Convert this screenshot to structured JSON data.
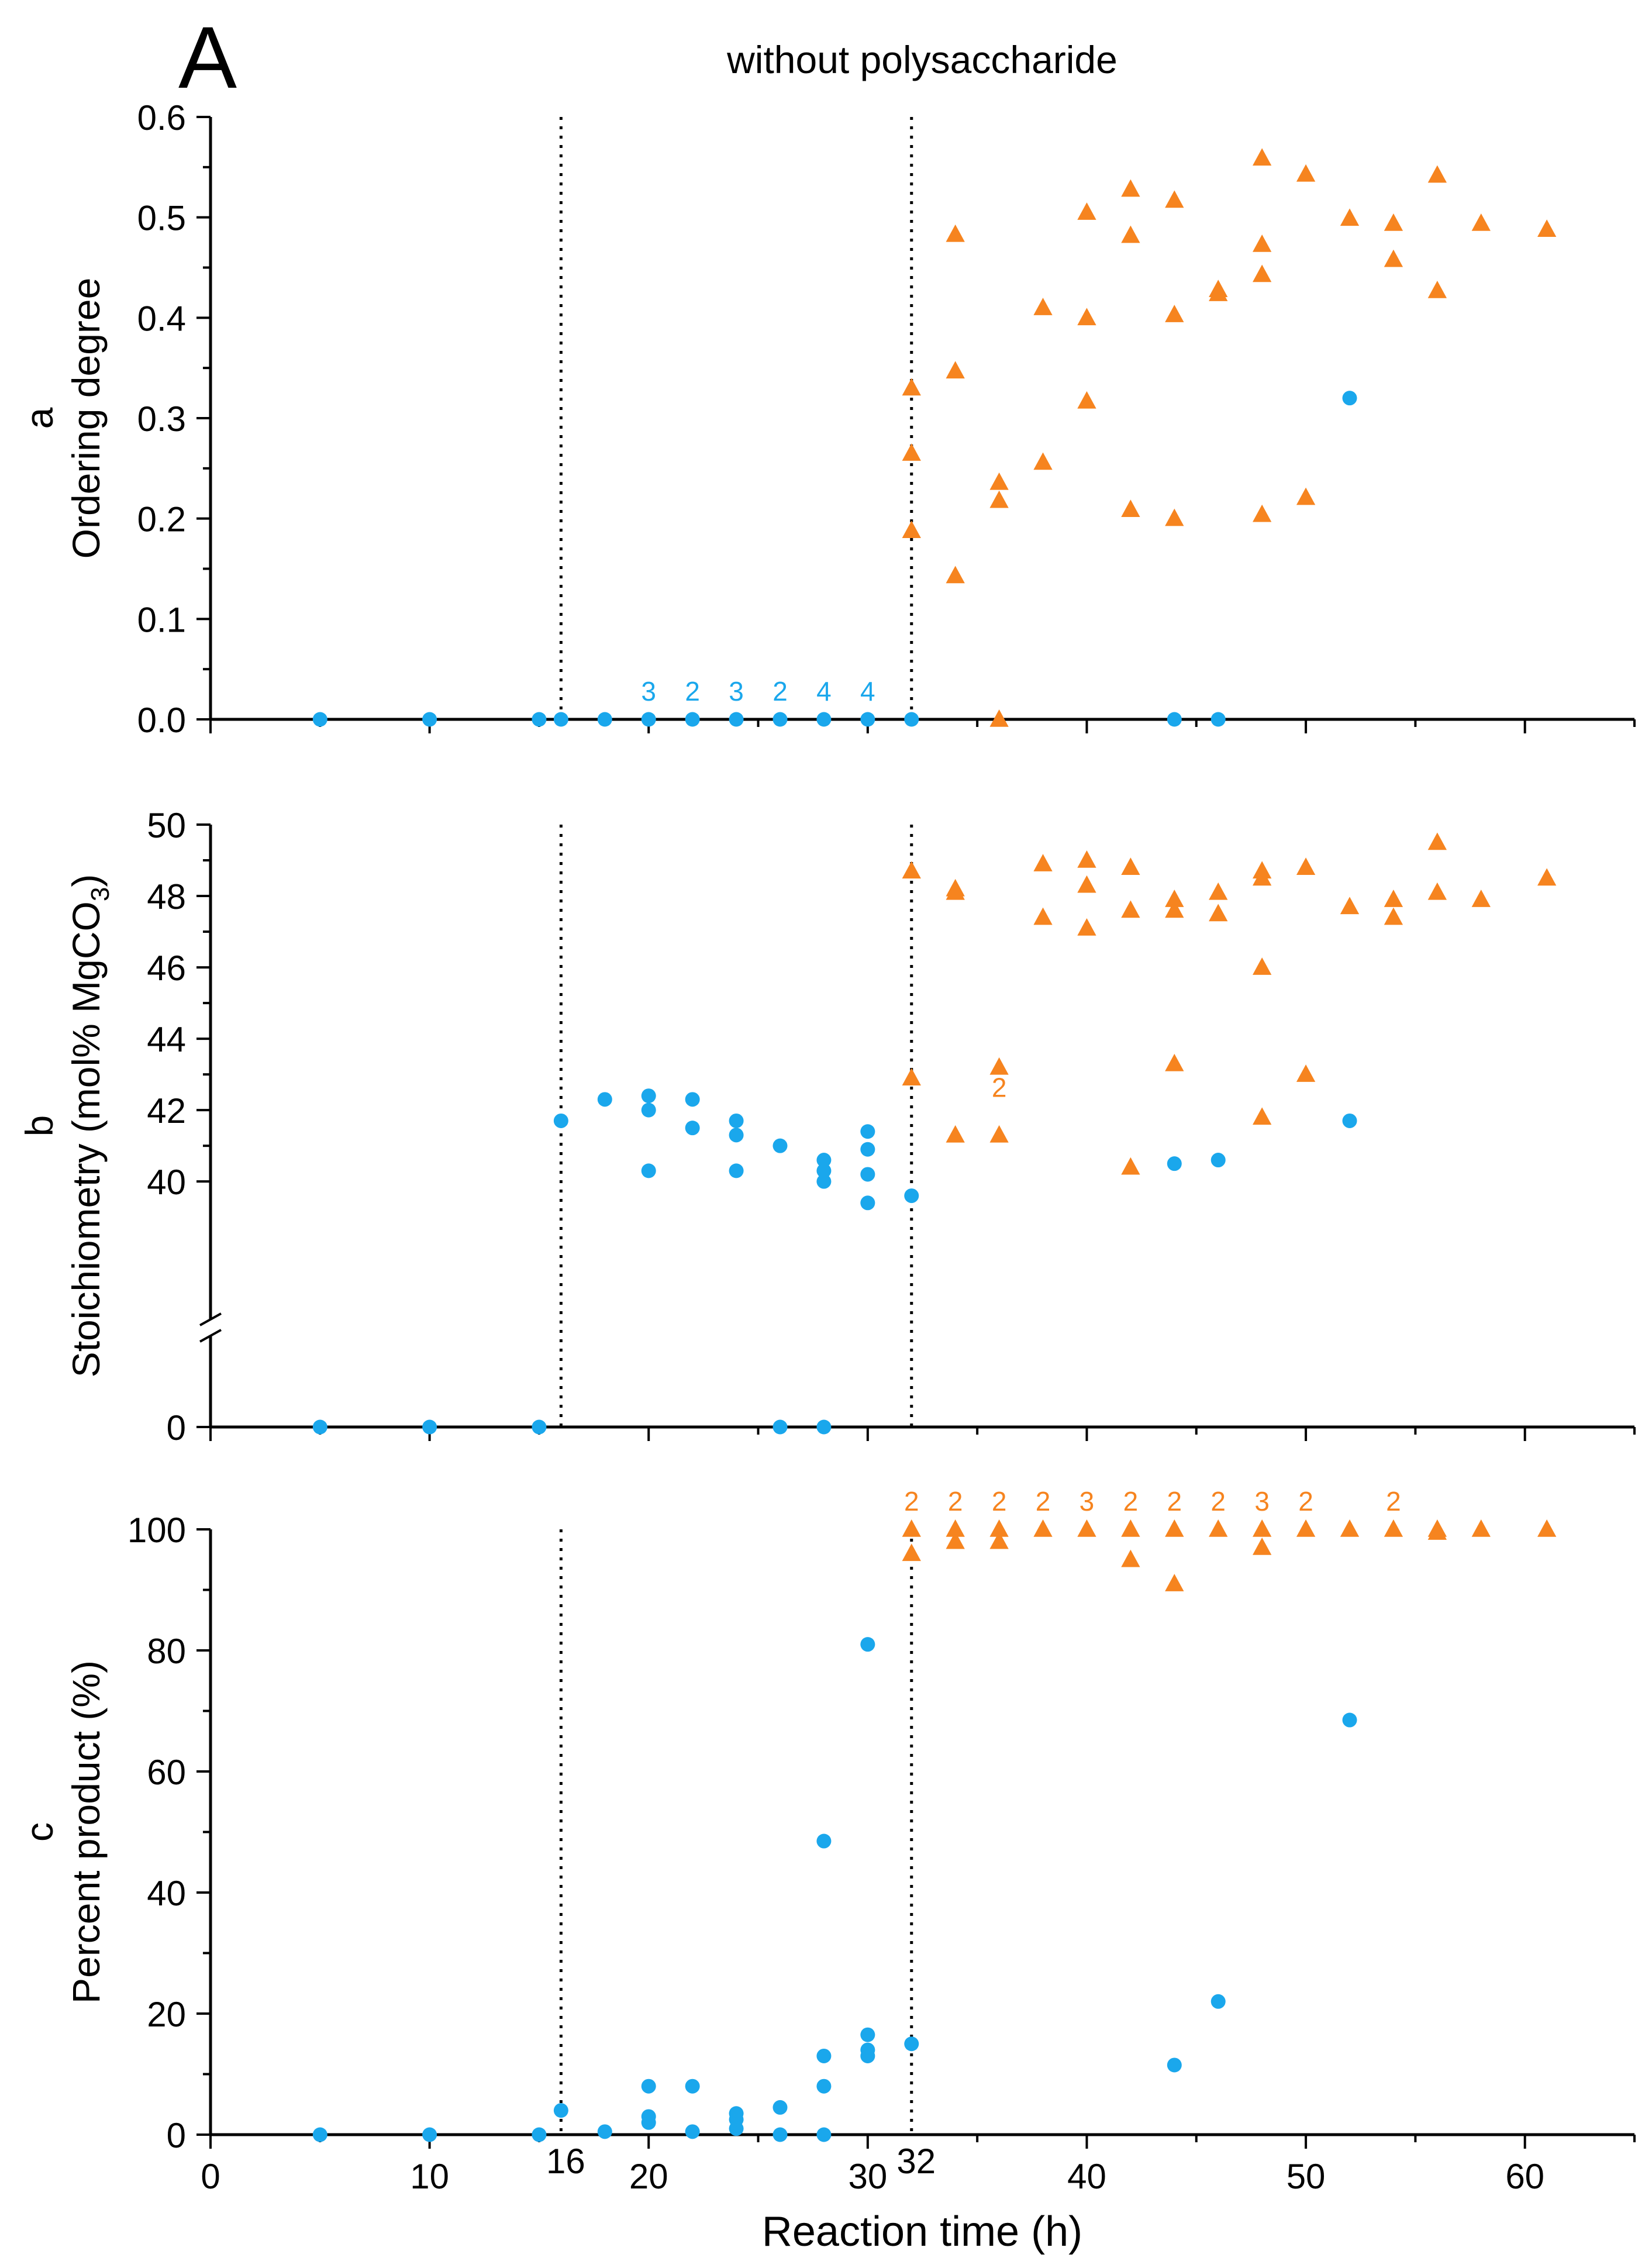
{
  "figure": {
    "panel_letter": "A",
    "title": "without polysaccharide",
    "xlabel": "Reaction time (h)",
    "xlim": [
      0,
      65
    ],
    "xticks": [
      0,
      10,
      20,
      30,
      40,
      50,
      60
    ],
    "vlines": [
      16,
      32
    ],
    "vline_labels": [
      "16",
      "32"
    ],
    "colors": {
      "phase1": "#1aa7ec",
      "phase2": "#f6841f",
      "axis": "#000000"
    }
  },
  "chart_data": [
    {
      "id": "a",
      "type": "scatter",
      "panel_label": "a",
      "ylabel": "Ordering degree",
      "ylim": [
        0,
        0.6
      ],
      "yticks": [
        0.0,
        0.1,
        0.2,
        0.3,
        0.4,
        0.5,
        0.6
      ],
      "ytick_labels": [
        "0.0",
        "0.1",
        "0.2",
        "0.3",
        "0.4",
        "0.5",
        "0.6"
      ],
      "series": [
        {
          "name": "blue circles",
          "marker": "circle",
          "color": "#1aa7ec",
          "points": [
            [
              5,
              0
            ],
            [
              10,
              0
            ],
            [
              15,
              0
            ],
            [
              16,
              0
            ],
            [
              18,
              0
            ],
            [
              20,
              0
            ],
            [
              22,
              0
            ],
            [
              24,
              0
            ],
            [
              26,
              0
            ],
            [
              28,
              0
            ],
            [
              30,
              0
            ],
            [
              32,
              0
            ],
            [
              44,
              0
            ],
            [
              46,
              0
            ],
            [
              52,
              0.32
            ]
          ]
        },
        {
          "name": "orange triangles",
          "marker": "triangle",
          "color": "#f6841f",
          "points": [
            [
              32,
              0.33
            ],
            [
              32,
              0.265
            ],
            [
              32,
              0.188
            ],
            [
              34,
              0.483
            ],
            [
              34,
              0.347
            ],
            [
              34,
              0.143
            ],
            [
              36,
              0.236
            ],
            [
              36,
              0.218
            ],
            [
              36,
              0.0
            ],
            [
              38,
              0.41
            ],
            [
              38,
              0.256
            ],
            [
              40,
              0.505
            ],
            [
              40,
              0.4
            ],
            [
              40,
              0.317
            ],
            [
              42,
              0.528
            ],
            [
              42,
              0.482
            ],
            [
              42,
              0.209
            ],
            [
              44,
              0.517
            ],
            [
              44,
              0.403
            ],
            [
              44,
              0.2
            ],
            [
              46,
              0.428
            ],
            [
              46,
              0.424
            ],
            [
              48,
              0.559
            ],
            [
              48,
              0.473
            ],
            [
              48,
              0.443
            ],
            [
              48,
              0.204
            ],
            [
              50,
              0.543
            ],
            [
              50,
              0.221
            ],
            [
              52,
              0.499
            ],
            [
              54,
              0.494
            ],
            [
              54,
              0.458
            ],
            [
              56,
              0.542
            ],
            [
              56,
              0.427
            ],
            [
              58,
              0.494
            ],
            [
              61,
              0.488
            ]
          ]
        }
      ],
      "annotations": [
        {
          "x": 20,
          "y": 0,
          "text": "3",
          "color": "#1aa7ec"
        },
        {
          "x": 22,
          "y": 0,
          "text": "2",
          "color": "#1aa7ec"
        },
        {
          "x": 24,
          "y": 0,
          "text": "3",
          "color": "#1aa7ec"
        },
        {
          "x": 26,
          "y": 0,
          "text": "2",
          "color": "#1aa7ec"
        },
        {
          "x": 28,
          "y": 0,
          "text": "4",
          "color": "#1aa7ec"
        },
        {
          "x": 30,
          "y": 0,
          "text": "4",
          "color": "#1aa7ec"
        }
      ]
    },
    {
      "id": "b",
      "type": "scatter",
      "panel_label": "b",
      "ylabel_prefix": "Stoichiometry (mol% MgCO",
      "ylabel_sub": "3",
      "ylabel_suffix": ")",
      "ylim": [
        38.2,
        50
      ],
      "axis_break": true,
      "below_break_value": 0,
      "yticks": [
        40,
        42,
        44,
        46,
        48,
        50
      ],
      "ytick_labels": [
        "40",
        "42",
        "44",
        "46",
        "48",
        "50"
      ],
      "extra_tick_label": "0",
      "series": [
        {
          "name": "blue circles",
          "marker": "circle",
          "color": "#1aa7ec",
          "points": [
            [
              16,
              41.7
            ],
            [
              18,
              42.3
            ],
            [
              20,
              42.4
            ],
            [
              20,
              42.0
            ],
            [
              20,
              40.3
            ],
            [
              22,
              42.3
            ],
            [
              22,
              41.5
            ],
            [
              24,
              41.7
            ],
            [
              24,
              41.3
            ],
            [
              24,
              40.3
            ],
            [
              26,
              41.0
            ],
            [
              28,
              40.6
            ],
            [
              28,
              40.3
            ],
            [
              28,
              40.0
            ],
            [
              30,
              41.4
            ],
            [
              30,
              40.9
            ],
            [
              30,
              40.2
            ],
            [
              30,
              39.4
            ],
            [
              32,
              39.6
            ],
            [
              44,
              40.5
            ],
            [
              46,
              40.6
            ],
            [
              52,
              41.7
            ]
          ]
        },
        {
          "name": "orange triangles",
          "marker": "triangle",
          "color": "#f6841f",
          "points": [
            [
              32,
              48.7
            ],
            [
              32,
              42.9
            ],
            [
              34,
              48.2
            ],
            [
              34,
              48.1
            ],
            [
              34,
              41.3
            ],
            [
              36,
              43.2
            ],
            [
              36,
              41.3
            ],
            [
              38,
              48.9
            ],
            [
              38,
              47.4
            ],
            [
              40,
              49.0
            ],
            [
              40,
              48.3
            ],
            [
              40,
              47.1
            ],
            [
              42,
              48.8
            ],
            [
              42,
              47.6
            ],
            [
              42,
              40.4
            ],
            [
              44,
              47.9
            ],
            [
              44,
              47.6
            ],
            [
              44,
              43.3
            ],
            [
              46,
              48.1
            ],
            [
              46,
              47.5
            ],
            [
              48,
              48.7
            ],
            [
              48,
              48.5
            ],
            [
              48,
              46.0
            ],
            [
              48,
              41.8
            ],
            [
              50,
              48.8
            ],
            [
              50,
              43.0
            ],
            [
              52,
              47.7
            ],
            [
              54,
              47.9
            ],
            [
              54,
              47.4
            ],
            [
              56,
              49.5
            ],
            [
              56,
              48.1
            ],
            [
              58,
              47.9
            ],
            [
              61,
              48.5
            ]
          ]
        },
        {
          "name": "blue circles at zero",
          "marker": "circle",
          "color": "#1aa7ec",
          "below_break": true,
          "points": [
            [
              5,
              0
            ],
            [
              10,
              0
            ],
            [
              15,
              0
            ],
            [
              26,
              0
            ],
            [
              28,
              0
            ]
          ]
        }
      ],
      "annotations": [
        {
          "x": 36,
          "y": 41.85,
          "text": "2",
          "color": "#f6841f"
        }
      ]
    },
    {
      "id": "c",
      "type": "scatter",
      "panel_label": "c",
      "ylabel": "Percent product (%)",
      "ylim": [
        0,
        100
      ],
      "yticks": [
        0,
        20,
        40,
        60,
        80,
        100
      ],
      "ytick_labels": [
        "0",
        "20",
        "40",
        "60",
        "80",
        "100"
      ],
      "series": [
        {
          "name": "blue circles",
          "marker": "circle",
          "color": "#1aa7ec",
          "points": [
            [
              5,
              0
            ],
            [
              10,
              0
            ],
            [
              15,
              0
            ],
            [
              16,
              4
            ],
            [
              18,
              0.5
            ],
            [
              20,
              8
            ],
            [
              20,
              3
            ],
            [
              20,
              2
            ],
            [
              22,
              8
            ],
            [
              22,
              0.5
            ],
            [
              24,
              3.5
            ],
            [
              24,
              2.5
            ],
            [
              24,
              1
            ],
            [
              26,
              4.5
            ],
            [
              26,
              0
            ],
            [
              28,
              48.5
            ],
            [
              28,
              13
            ],
            [
              28,
              8
            ],
            [
              28,
              0
            ],
            [
              30,
              81
            ],
            [
              30,
              16.5
            ],
            [
              30,
              14
            ],
            [
              30,
              13
            ],
            [
              32,
              15
            ],
            [
              44,
              11.5
            ],
            [
              46,
              22
            ],
            [
              52,
              68.5
            ]
          ]
        },
        {
          "name": "orange triangles",
          "marker": "triangle",
          "color": "#f6841f",
          "points": [
            [
              32,
              100
            ],
            [
              32,
              96
            ],
            [
              34,
              100
            ],
            [
              34,
              98
            ],
            [
              36,
              100
            ],
            [
              36,
              98
            ],
            [
              38,
              100
            ],
            [
              40,
              100
            ],
            [
              42,
              100
            ],
            [
              42,
              95
            ],
            [
              44,
              100
            ],
            [
              44,
              91
            ],
            [
              46,
              100
            ],
            [
              48,
              100
            ],
            [
              48,
              97
            ],
            [
              50,
              100
            ],
            [
              52,
              100
            ],
            [
              54,
              100
            ],
            [
              56,
              100
            ],
            [
              56,
              99.5
            ],
            [
              58,
              100
            ],
            [
              61,
              100
            ]
          ]
        }
      ],
      "annotations": [
        {
          "x": 32,
          "y": 100,
          "text": "2",
          "color": "#f6841f"
        },
        {
          "x": 34,
          "y": 100,
          "text": "2",
          "color": "#f6841f"
        },
        {
          "x": 36,
          "y": 100,
          "text": "2",
          "color": "#f6841f"
        },
        {
          "x": 38,
          "y": 100,
          "text": "2",
          "color": "#f6841f"
        },
        {
          "x": 40,
          "y": 100,
          "text": "3",
          "color": "#f6841f"
        },
        {
          "x": 42,
          "y": 100,
          "text": "2",
          "color": "#f6841f"
        },
        {
          "x": 44,
          "y": 100,
          "text": "2",
          "color": "#f6841f"
        },
        {
          "x": 46,
          "y": 100,
          "text": "2",
          "color": "#f6841f"
        },
        {
          "x": 48,
          "y": 100,
          "text": "3",
          "color": "#f6841f"
        },
        {
          "x": 50,
          "y": 100,
          "text": "2",
          "color": "#f6841f"
        },
        {
          "x": 54,
          "y": 100,
          "text": "2",
          "color": "#f6841f"
        }
      ]
    }
  ]
}
